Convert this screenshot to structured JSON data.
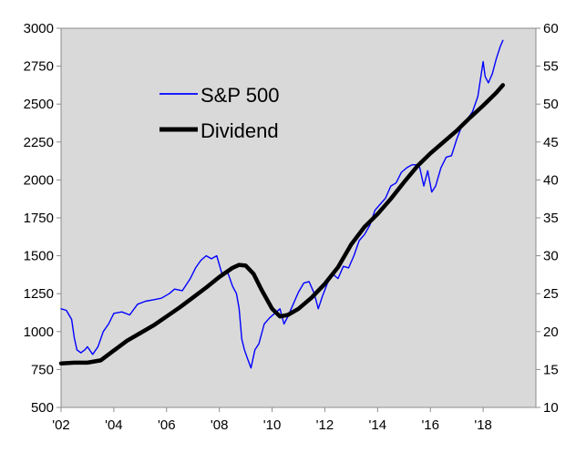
{
  "chart_data": {
    "type": "line",
    "title": "",
    "xlabel": "",
    "ylabel": "",
    "y2label": "",
    "x_ticks": [
      "'02",
      "'04",
      "'06",
      "'08",
      "'10",
      "'12",
      "'14",
      "'16",
      "'18"
    ],
    "x_range": [
      2002,
      2020
    ],
    "ylim": [
      500,
      3000
    ],
    "y_ticks": [
      "500",
      "750",
      "1000",
      "1250",
      "1500",
      "1750",
      "2000",
      "2250",
      "2500",
      "2750",
      "3000"
    ],
    "y2lim": [
      10,
      60
    ],
    "y2_ticks": [
      "10",
      "15",
      "20",
      "25",
      "30",
      "35",
      "40",
      "45",
      "50",
      "55",
      "60"
    ],
    "grid": false,
    "legend_position": "upper-left inside plot",
    "plot_background": "#d9d9d9",
    "series": [
      {
        "name": "S&P 500",
        "axis": "left",
        "color": "#0000ff",
        "x": [
          2002.0,
          2002.2,
          2002.4,
          2002.5,
          2002.6,
          2002.75,
          2002.9,
          2003.0,
          2003.2,
          2003.4,
          2003.6,
          2003.8,
          2004.0,
          2004.3,
          2004.6,
          2004.9,
          2005.2,
          2005.5,
          2005.8,
          2006.1,
          2006.3,
          2006.6,
          2006.9,
          2007.1,
          2007.3,
          2007.5,
          2007.7,
          2007.9,
          2008.1,
          2008.3,
          2008.5,
          2008.65,
          2008.75,
          2008.85,
          2008.95,
          2009.05,
          2009.2,
          2009.35,
          2009.5,
          2009.7,
          2009.9,
          2010.1,
          2010.3,
          2010.45,
          2010.6,
          2010.8,
          2011.0,
          2011.2,
          2011.4,
          2011.6,
          2011.75,
          2011.9,
          2012.1,
          2012.3,
          2012.5,
          2012.7,
          2012.9,
          2013.1,
          2013.3,
          2013.5,
          2013.7,
          2013.9,
          2014.1,
          2014.3,
          2014.5,
          2014.7,
          2014.9,
          2015.1,
          2015.3,
          2015.5,
          2015.6,
          2015.75,
          2015.9,
          2016.05,
          2016.2,
          2016.4,
          2016.6,
          2016.8,
          2017.0,
          2017.2,
          2017.4,
          2017.6,
          2017.8,
          2018.0,
          2018.08,
          2018.2,
          2018.35,
          2018.5,
          2018.65,
          2018.75
        ],
        "values": [
          1150,
          1140,
          1080,
          960,
          880,
          860,
          880,
          900,
          850,
          900,
          1000,
          1050,
          1120,
          1130,
          1110,
          1180,
          1200,
          1210,
          1220,
          1250,
          1280,
          1270,
          1350,
          1420,
          1470,
          1500,
          1480,
          1500,
          1380,
          1400,
          1300,
          1250,
          1150,
          950,
          880,
          830,
          760,
          880,
          920,
          1050,
          1090,
          1120,
          1150,
          1050,
          1100,
          1180,
          1260,
          1320,
          1330,
          1250,
          1150,
          1230,
          1320,
          1380,
          1350,
          1430,
          1420,
          1500,
          1600,
          1640,
          1700,
          1800,
          1840,
          1880,
          1960,
          1980,
          2050,
          2080,
          2100,
          2100,
          2080,
          1960,
          2060,
          1920,
          1960,
          2080,
          2150,
          2160,
          2270,
          2360,
          2400,
          2450,
          2550,
          2780,
          2680,
          2640,
          2700,
          2800,
          2880,
          2920
        ]
      },
      {
        "name": "Dividend",
        "axis": "right",
        "color": "#000000",
        "x": [
          2002.0,
          2002.5,
          2003.0,
          2003.5,
          2004.0,
          2004.5,
          2005.0,
          2005.5,
          2006.0,
          2006.5,
          2007.0,
          2007.5,
          2008.0,
          2008.5,
          2008.75,
          2009.0,
          2009.3,
          2009.6,
          2010.0,
          2010.3,
          2010.6,
          2011.0,
          2011.5,
          2012.0,
          2012.5,
          2013.0,
          2013.5,
          2014.0,
          2014.5,
          2015.0,
          2015.5,
          2016.0,
          2016.5,
          2017.0,
          2017.5,
          2018.0,
          2018.5,
          2018.75
        ],
        "values": [
          15.8,
          15.9,
          15.9,
          16.2,
          17.5,
          18.8,
          19.8,
          20.8,
          22.0,
          23.2,
          24.5,
          25.8,
          27.2,
          28.4,
          28.8,
          28.7,
          27.6,
          25.5,
          23.0,
          22.0,
          22.2,
          23.0,
          24.5,
          26.3,
          28.5,
          31.5,
          33.8,
          35.5,
          37.5,
          39.7,
          41.8,
          43.5,
          45.0,
          46.5,
          48.2,
          49.8,
          51.5,
          52.5
        ]
      }
    ]
  }
}
